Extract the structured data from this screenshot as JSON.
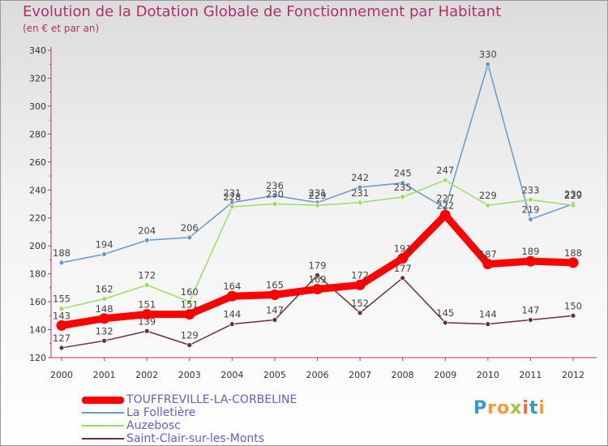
{
  "chart_data": {
    "type": "line",
    "title": "Evolution de la Dotation Globale de Fonctionnement par Habitant",
    "subtitle": "(en € et par an)",
    "x": [
      "2000",
      "2001",
      "2002",
      "2003",
      "2004",
      "2005",
      "2006",
      "2007",
      "2008",
      "2009",
      "2010",
      "2011",
      "2012"
    ],
    "ylim": [
      120,
      340
    ],
    "yticks": [
      120,
      140,
      160,
      180,
      200,
      220,
      240,
      260,
      280,
      300,
      320,
      340
    ],
    "grid": false,
    "legend_position": "bottom-left",
    "series": [
      {
        "name": "TOUFFREVILLE-LA-CORBELINE",
        "color": "#ff0000",
        "values": [
          143,
          148,
          151,
          151,
          164,
          165,
          169,
          172,
          191,
          222,
          187,
          189,
          188
        ]
      },
      {
        "name": "La Folletière",
        "color": "#6699cc",
        "values": [
          188,
          194,
          204,
          206,
          231,
          236,
          231,
          242,
          245,
          227,
          330,
          219,
          230
        ]
      },
      {
        "name": "Auzebosc",
        "color": "#99dd66",
        "values": [
          155,
          162,
          172,
          160,
          228,
          230,
          229,
          231,
          235,
          247,
          229,
          233,
          229
        ]
      },
      {
        "name": "Saint-Clair-sur-les-Monts",
        "color": "#663333",
        "values": [
          127,
          132,
          139,
          129,
          144,
          147,
          179,
          152,
          177,
          145,
          144,
          147,
          150
        ]
      }
    ]
  },
  "logo": {
    "text": "Proxiti"
  }
}
